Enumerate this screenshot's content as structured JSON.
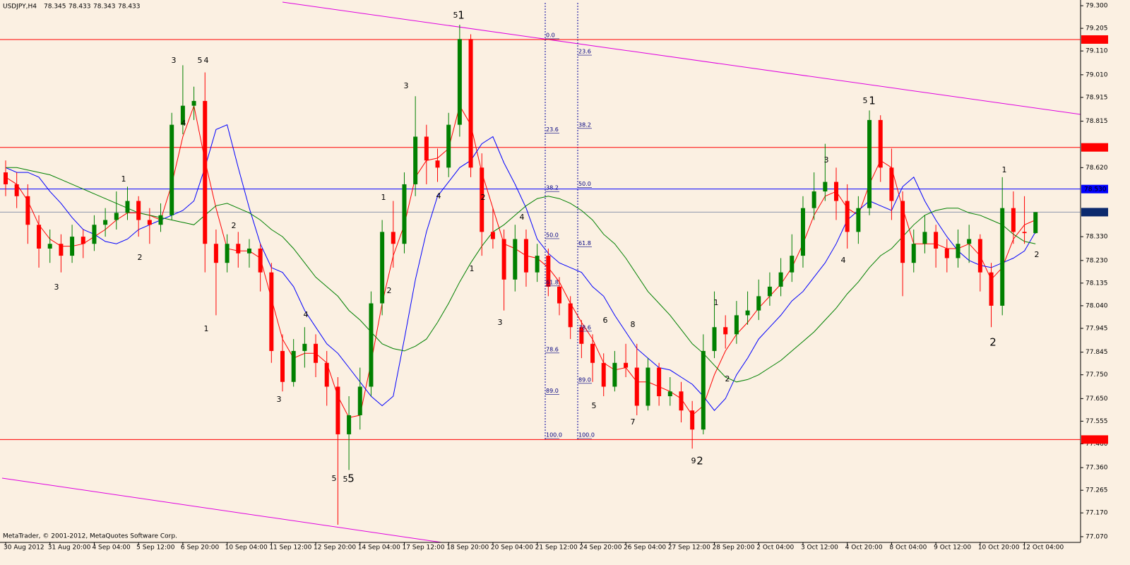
{
  "chart_data": {
    "type": "candlestick",
    "symbol": "USDJPY,H4",
    "credit": "MetaTrader, © 2001-2012, MetaQuotes Software Corp.",
    "up_color": "#008000",
    "down_color": "#ff0000",
    "categories": [
      "30 Aug 2012",
      null,
      null,
      null,
      "31 Aug 20:00",
      null,
      null,
      null,
      "4 Sep 04:00",
      null,
      null,
      null,
      "5 Sep 12:00",
      null,
      null,
      null,
      "6 Sep 20:00",
      null,
      null,
      null,
      "10 Sep 04:00",
      null,
      null,
      null,
      "11 Sep 12:00",
      null,
      null,
      null,
      "12 Sep 20:00",
      null,
      null,
      null,
      "14 Sep 04:00",
      null,
      null,
      null,
      "17 Sep 12:00",
      null,
      null,
      null,
      "18 Sep 20:00",
      null,
      null,
      null,
      "20 Sep 04:00",
      null,
      null,
      null,
      "21 Sep 12:00",
      null,
      null,
      null,
      "24 Sep 20:00",
      null,
      null,
      null,
      "26 Sep 04:00",
      null,
      null,
      null,
      "27 Sep 12:00",
      null,
      null,
      null,
      "28 Sep 20:00",
      null,
      null,
      null,
      "2 Oct 04:00",
      null,
      null,
      null,
      "3 Oct 12:00",
      null,
      null,
      null,
      "4 Oct 20:00",
      null,
      null,
      null,
      "8 Oct 04:00",
      null,
      null,
      null,
      "9 Oct 12:00",
      null,
      null,
      null,
      "10 Oct 20:00",
      null,
      null,
      null,
      "12 Oct 04:00",
      null
    ],
    "ohlc": [
      [
        78.6,
        78.65,
        78.5,
        78.55
      ],
      [
        78.55,
        78.6,
        78.45,
        78.5
      ],
      [
        78.5,
        78.55,
        78.3,
        78.38
      ],
      [
        78.38,
        78.42,
        78.2,
        78.28
      ],
      [
        78.28,
        78.36,
        78.22,
        78.3
      ],
      [
        78.3,
        78.34,
        78.18,
        78.25
      ],
      [
        78.25,
        78.38,
        78.22,
        78.33
      ],
      [
        78.33,
        78.36,
        78.24,
        78.3
      ],
      [
        78.3,
        78.42,
        78.27,
        78.38
      ],
      [
        78.38,
        78.45,
        78.33,
        78.4
      ],
      [
        78.4,
        78.52,
        78.36,
        78.43
      ],
      [
        78.43,
        78.54,
        78.4,
        78.48
      ],
      [
        78.48,
        78.5,
        78.33,
        78.4
      ],
      [
        78.4,
        78.45,
        78.3,
        78.38
      ],
      [
        78.38,
        78.47,
        78.35,
        78.42
      ],
      [
        78.42,
        78.85,
        78.4,
        78.8
      ],
      [
        78.8,
        79.05,
        78.76,
        78.88
      ],
      [
        78.88,
        78.96,
        78.82,
        78.9
      ],
      [
        78.9,
        79.02,
        78.18,
        78.3
      ],
      [
        78.3,
        78.36,
        78.0,
        78.22
      ],
      [
        78.22,
        78.34,
        78.18,
        78.3
      ],
      [
        78.3,
        78.35,
        78.2,
        78.26
      ],
      [
        78.26,
        78.32,
        78.2,
        78.28
      ],
      [
        78.28,
        78.3,
        78.1,
        78.18
      ],
      [
        78.18,
        78.22,
        77.8,
        77.85
      ],
      [
        77.85,
        77.92,
        77.68,
        77.72
      ],
      [
        77.72,
        77.9,
        77.7,
        77.85
      ],
      [
        77.85,
        77.95,
        77.78,
        77.88
      ],
      [
        77.88,
        77.92,
        77.74,
        77.8
      ],
      [
        77.8,
        77.85,
        77.62,
        77.7
      ],
      [
        77.7,
        77.74,
        77.12,
        77.5
      ],
      [
        77.5,
        77.66,
        77.35,
        77.58
      ],
      [
        77.58,
        77.78,
        77.52,
        77.7
      ],
      [
        77.7,
        78.1,
        77.66,
        78.05
      ],
      [
        78.05,
        78.4,
        78.0,
        78.35
      ],
      [
        78.35,
        78.48,
        78.2,
        78.3
      ],
      [
        78.3,
        78.6,
        78.26,
        78.55
      ],
      [
        78.55,
        78.92,
        78.5,
        78.75
      ],
      [
        78.75,
        78.8,
        78.55,
        78.65
      ],
      [
        78.65,
        78.7,
        78.56,
        78.62
      ],
      [
        78.62,
        78.85,
        78.58,
        78.8
      ],
      [
        78.8,
        79.22,
        78.75,
        79.16
      ],
      [
        79.16,
        79.18,
        78.58,
        78.62
      ],
      [
        78.62,
        78.68,
        78.25,
        78.35
      ],
      [
        78.35,
        78.45,
        78.28,
        78.32
      ],
      [
        78.32,
        78.36,
        78.02,
        78.15
      ],
      [
        78.15,
        78.38,
        78.1,
        78.32
      ],
      [
        78.32,
        78.36,
        78.12,
        78.18
      ],
      [
        78.18,
        78.3,
        78.14,
        78.25
      ],
      [
        78.25,
        78.28,
        78.08,
        78.12
      ],
      [
        78.12,
        78.16,
        78.0,
        78.05
      ],
      [
        78.05,
        78.08,
        77.9,
        77.95
      ],
      [
        77.95,
        77.98,
        77.82,
        77.88
      ],
      [
        77.88,
        77.92,
        77.72,
        77.8
      ],
      [
        77.8,
        77.84,
        77.66,
        77.7
      ],
      [
        77.7,
        77.85,
        77.68,
        77.8
      ],
      [
        77.8,
        77.88,
        77.74,
        77.78
      ],
      [
        77.78,
        77.88,
        77.58,
        77.62
      ],
      [
        77.62,
        77.82,
        77.6,
        77.78
      ],
      [
        77.78,
        77.8,
        77.62,
        77.66
      ],
      [
        77.66,
        77.74,
        77.62,
        77.68
      ],
      [
        77.68,
        77.72,
        77.55,
        77.6
      ],
      [
        77.6,
        77.64,
        77.44,
        77.52
      ],
      [
        77.52,
        77.92,
        77.5,
        77.85
      ],
      [
        77.85,
        78.1,
        77.82,
        77.95
      ],
      [
        77.95,
        78.0,
        77.86,
        77.92
      ],
      [
        77.92,
        78.06,
        77.88,
        78.0
      ],
      [
        78.0,
        78.1,
        77.96,
        78.02
      ],
      [
        78.02,
        78.15,
        77.98,
        78.08
      ],
      [
        78.08,
        78.18,
        78.04,
        78.12
      ],
      [
        78.12,
        78.24,
        78.08,
        78.18
      ],
      [
        78.18,
        78.34,
        78.14,
        78.25
      ],
      [
        78.25,
        78.5,
        78.2,
        78.45
      ],
      [
        78.45,
        78.6,
        78.4,
        78.52
      ],
      [
        78.52,
        78.72,
        78.48,
        78.56
      ],
      [
        78.56,
        78.62,
        78.4,
        78.48
      ],
      [
        78.48,
        78.55,
        78.28,
        78.35
      ],
      [
        78.35,
        78.5,
        78.3,
        78.45
      ],
      [
        78.45,
        78.86,
        78.42,
        78.82
      ],
      [
        78.82,
        78.84,
        78.56,
        78.62
      ],
      [
        78.62,
        78.7,
        78.4,
        78.48
      ],
      [
        78.48,
        78.52,
        78.08,
        78.22
      ],
      [
        78.22,
        78.36,
        78.18,
        78.3
      ],
      [
        78.3,
        78.42,
        78.26,
        78.35
      ],
      [
        78.35,
        78.38,
        78.2,
        78.28
      ],
      [
        78.28,
        78.32,
        78.18,
        78.24
      ],
      [
        78.24,
        78.36,
        78.2,
        78.3
      ],
      [
        78.3,
        78.38,
        78.22,
        78.32
      ],
      [
        78.32,
        78.34,
        78.1,
        78.18
      ],
      [
        78.18,
        78.22,
        77.95,
        78.04
      ],
      [
        78.04,
        78.58,
        78.0,
        78.45
      ],
      [
        78.45,
        78.52,
        78.3,
        78.35
      ],
      [
        78.35,
        78.5,
        78.3,
        78.345
      ],
      [
        78.345,
        78.433,
        78.343,
        78.433
      ]
    ],
    "series": [
      {
        "color": "#ff0000",
        "values": [
          78.58,
          78.55,
          78.48,
          78.38,
          78.32,
          78.29,
          78.29,
          78.3,
          78.33,
          78.36,
          78.4,
          78.43,
          78.43,
          78.42,
          78.4,
          78.55,
          78.75,
          78.88,
          78.65,
          78.45,
          78.28,
          78.27,
          78.27,
          78.24,
          78.07,
          77.9,
          77.82,
          77.84,
          77.84,
          77.8,
          77.66,
          77.57,
          77.58,
          77.8,
          78.05,
          78.25,
          78.38,
          78.58,
          78.65,
          78.66,
          78.7,
          78.88,
          78.8,
          78.6,
          78.45,
          78.3,
          78.28,
          78.25,
          78.24,
          78.2,
          78.14,
          78.05,
          77.97,
          77.9,
          77.8,
          77.77,
          77.78,
          77.72,
          77.72,
          77.7,
          77.68,
          77.65,
          77.58,
          77.62,
          77.75,
          77.85,
          77.92,
          77.97,
          78.03,
          78.08,
          78.13,
          78.2,
          78.3,
          78.42,
          78.5,
          78.52,
          78.45,
          78.42,
          78.55,
          78.65,
          78.62,
          78.45,
          78.3,
          78.3,
          78.3,
          78.28,
          78.28,
          78.3,
          78.25,
          78.15,
          78.2,
          78.32,
          78.38,
          78.4
        ]
      },
      {
        "color": "#0000ff",
        "values": [
          78.62,
          78.6,
          78.6,
          78.58,
          78.52,
          78.47,
          78.41,
          78.36,
          78.34,
          78.31,
          78.3,
          78.32,
          78.36,
          78.38,
          78.4,
          78.42,
          78.44,
          78.48,
          78.62,
          78.78,
          78.8,
          78.62,
          78.45,
          78.3,
          78.2,
          78.18,
          78.12,
          78.02,
          77.95,
          77.88,
          77.84,
          77.78,
          77.72,
          77.66,
          77.62,
          77.66,
          77.9,
          78.15,
          78.35,
          78.5,
          78.56,
          78.62,
          78.65,
          78.72,
          78.75,
          78.64,
          78.55,
          78.45,
          78.32,
          78.26,
          78.22,
          78.2,
          78.18,
          78.12,
          78.08,
          78.0,
          77.93,
          77.86,
          77.82,
          77.78,
          77.77,
          77.74,
          77.71,
          77.66,
          77.6,
          77.65,
          77.75,
          77.82,
          77.9,
          77.95,
          78.0,
          78.06,
          78.1,
          78.16,
          78.22,
          78.3,
          78.4,
          78.44,
          78.48,
          78.46,
          78.44,
          78.54,
          78.58,
          78.48,
          78.4,
          78.33,
          78.27,
          78.23,
          78.21,
          78.2,
          78.22,
          78.24,
          78.27,
          78.35
        ]
      },
      {
        "color": "#008000",
        "values": [
          78.62,
          78.62,
          78.61,
          78.6,
          78.59,
          78.57,
          78.55,
          78.53,
          78.51,
          78.49,
          78.47,
          78.45,
          78.43,
          78.42,
          78.41,
          78.4,
          78.39,
          78.38,
          78.42,
          78.46,
          78.47,
          78.45,
          78.43,
          78.4,
          78.36,
          78.33,
          78.28,
          78.22,
          78.16,
          78.12,
          78.08,
          78.02,
          77.98,
          77.93,
          77.88,
          77.86,
          77.85,
          77.87,
          77.9,
          77.97,
          78.05,
          78.14,
          78.22,
          78.29,
          78.35,
          78.38,
          78.42,
          78.46,
          78.49,
          78.5,
          78.49,
          78.47,
          78.44,
          78.4,
          78.34,
          78.3,
          78.24,
          78.17,
          78.1,
          78.05,
          78.0,
          77.94,
          77.88,
          77.84,
          77.79,
          77.74,
          77.72,
          77.73,
          77.75,
          77.78,
          77.81,
          77.85,
          77.89,
          77.93,
          77.98,
          78.03,
          78.09,
          78.14,
          78.2,
          78.25,
          78.28,
          78.33,
          78.38,
          78.42,
          78.44,
          78.45,
          78.45,
          78.43,
          78.42,
          78.4,
          78.38,
          78.34,
          78.31,
          78.3
        ]
      }
    ],
    "ylim": [
      77.046,
      79.324
    ],
    "yticks": [
      {
        "value": 79.3,
        "label": "79.300"
      },
      79.205,
      {
        "value": 79.11,
        "label": "79.110"
      },
      {
        "value": 79.01,
        "label": "79.010"
      },
      78.915,
      78.815,
      {
        "value": 78.62,
        "label": "78.620"
      },
      {
        "value": 78.33,
        "label": "78.330"
      },
      {
        "value": 78.23,
        "label": "78.230"
      },
      78.135,
      {
        "value": 78.04,
        "label": "78.040"
      },
      77.945,
      77.845,
      {
        "value": 77.75,
        "label": "77.750"
      },
      {
        "value": 77.65,
        "label": "77.650"
      },
      77.555,
      {
        "value": 77.46,
        "label": "77.460"
      },
      {
        "value": 77.36,
        "label": "77.360"
      },
      77.265,
      {
        "value": 77.17,
        "label": "77.170"
      },
      {
        "value": 77.07,
        "label": "77.070"
      }
    ],
    "levels": [
      {
        "value": 79.158,
        "color": "#ff0000"
      },
      {
        "value": 78.705,
        "color": "#ff0000"
      },
      {
        "value": 78.53,
        "label": "78.530",
        "color": "#0000ff"
      },
      {
        "value": 78.433,
        "color": "#0c2a6e"
      },
      {
        "value": 77.478,
        "color": "#ff0000"
      }
    ],
    "fibonacci": [
      {
        "high": 79.164,
        "low": 77.485,
        "levels": [
          {
            "value": 0,
            "label": "0.0"
          },
          23.6,
          38.2,
          {
            "value": 50,
            "label": "50.0"
          },
          61.8,
          78.6,
          {
            "value": 89,
            "label": "89.0"
          },
          {
            "value": 100,
            "label": "100.0"
          }
        ]
      },
      {
        "high": 79.593,
        "low": 77.485,
        "levels": [
          23.6,
          38.2,
          {
            "value": 50,
            "label": "50.0"
          },
          61.8,
          78.6,
          {
            "value": 89,
            "label": "89.0"
          },
          {
            "value": 100,
            "label": "100.0"
          }
        ]
      }
    ],
    "annotations": [
      {
        "text": "3",
        "color": "#4a6fd6"
      },
      {
        "text": "5",
        "color": "#4a6fd6"
      },
      {
        "text": "4",
        "color": "#e02020"
      },
      {
        "text": "4",
        "color": "#4a6fd6"
      },
      {
        "text": "1",
        "color": "#4a6fd6"
      },
      {
        "text": "2",
        "color": "#4a6fd6"
      },
      {
        "text": "3",
        "color": "#e02020"
      },
      {
        "text": "5",
        "color": "#4a6fd6"
      },
      {
        "text": "1",
        "color": "#1c2c9c"
      },
      {
        "text": "3",
        "color": "#4a6fd6"
      },
      {
        "text": "1",
        "color": "#4a6fd6"
      },
      {
        "text": "4",
        "color": "#4a6fd6"
      },
      {
        "text": "2",
        "color": "#4a6fd6"
      },
      {
        "text": "2",
        "color": "#e040e0"
      },
      {
        "text": "1",
        "color": "#e040e0"
      },
      {
        "text": "2",
        "color": "#e040e0"
      },
      {
        "text": "1",
        "color": "#e040e0"
      },
      {
        "text": "4",
        "color": "#e040e0"
      },
      {
        "text": "3",
        "color": "#e040e0"
      },
      {
        "text": "3",
        "color": "#e040e0"
      },
      {
        "text": "4",
        "color": "#e040e0"
      },
      {
        "text": "5",
        "color": "#e040e0"
      },
      {
        "text": "5",
        "color": "#e02020"
      },
      {
        "text": "5",
        "color": "#e02020"
      },
      {
        "text": "6",
        "color": "#e040e0"
      },
      {
        "text": "8",
        "color": "#e040e0"
      },
      {
        "text": "5",
        "color": "#e040e0"
      },
      {
        "text": "7",
        "color": "#e040e0"
      },
      {
        "text": "9",
        "color": "#e040e0"
      },
      {
        "text": "2",
        "color": "#1c2c9c"
      },
      {
        "text": "1",
        "color": "#4a6fd6"
      },
      {
        "text": "2",
        "color": "#4a6fd6"
      },
      {
        "text": "3",
        "color": "#4a6fd6"
      },
      {
        "text": "4",
        "color": "#4a6fd6"
      },
      {
        "text": "5",
        "color": "#4a6fd6"
      },
      {
        "text": "1",
        "color": "#1c2c9c"
      },
      {
        "text": "1",
        "color": "#4a6fd6"
      },
      {
        "text": "2",
        "color": "#4a6fd6"
      },
      {
        "text": "2",
        "color": "#1c2c9c"
      }
    ]
  }
}
